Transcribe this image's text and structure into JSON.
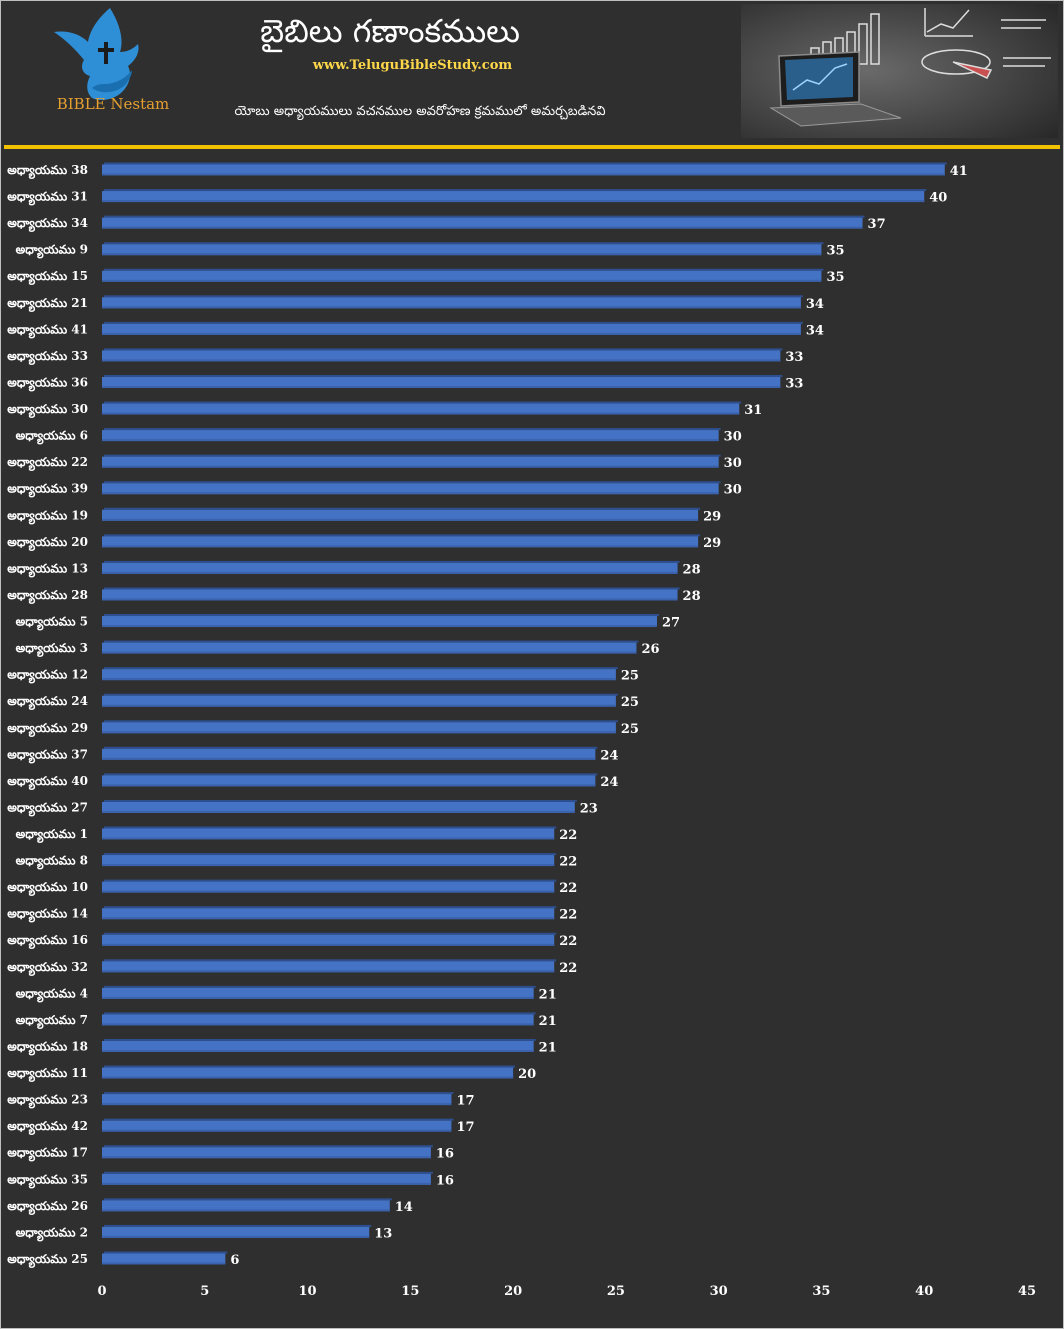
{
  "header": {
    "title": "బైబిలు గణాంకములు",
    "website": "www.TeluguBibleStudy.com",
    "subtitle": "యోబు అధ్యాయములు వచనముల అవరోహణ క్రమములో అమర్చబడినవి",
    "brand": "BIBLE Nestam"
  },
  "colors": {
    "background": "#2f2f2f",
    "bar": "#4472c4",
    "accent": "#f2c200",
    "text": "#ffffff"
  },
  "chart_data": {
    "type": "bar",
    "orientation": "horizontal",
    "categories": [
      "అధ్యాయము 38",
      "అధ్యాయము 31",
      "అధ్యాయము 34",
      "అధ్యాయము 9",
      "అధ్యాయము 15",
      "అధ్యాయము 21",
      "అధ్యాయము 41",
      "అధ్యాయము 33",
      "అధ్యాయము 36",
      "అధ్యాయము 30",
      "అధ్యాయము 6",
      "అధ్యాయము 22",
      "అధ్యాయము 39",
      "అధ్యాయము 19",
      "అధ్యాయము 20",
      "అధ్యాయము 13",
      "అధ్యాయము 28",
      "అధ్యాయము 5",
      "అధ్యాయము 3",
      "అధ్యాయము 12",
      "అధ్యాయము 24",
      "అధ్యాయము 29",
      "అధ్యాయము 37",
      "అధ్యాయము 40",
      "అధ్యాయము 27",
      "అధ్యాయము 1",
      "అధ్యాయము 8",
      "అధ్యాయము 10",
      "అధ్యాయము 14",
      "అధ్యాయము 16",
      "అధ్యాయము 32",
      "అధ్యాయము 4",
      "అధ్యాయము 7",
      "అధ్యాయము 18",
      "అధ్యాయము 11",
      "అధ్యాయము 23",
      "అధ్యాయము 42",
      "అధ్యాయము 17",
      "అధ్యాయము 35",
      "అధ్యాయము 26",
      "అధ్యాయము 2",
      "అధ్యాయము 25"
    ],
    "values": [
      41,
      40,
      37,
      35,
      35,
      34,
      34,
      33,
      33,
      31,
      30,
      30,
      30,
      29,
      29,
      28,
      28,
      27,
      26,
      25,
      25,
      25,
      24,
      24,
      23,
      22,
      22,
      22,
      22,
      22,
      22,
      21,
      21,
      21,
      20,
      17,
      17,
      16,
      16,
      14,
      13,
      6
    ],
    "xlim": [
      0,
      45
    ],
    "xticks": [
      0,
      5,
      10,
      15,
      20,
      25,
      30,
      35,
      40,
      45
    ],
    "grid": false,
    "legend": "none",
    "data_labels": true
  }
}
